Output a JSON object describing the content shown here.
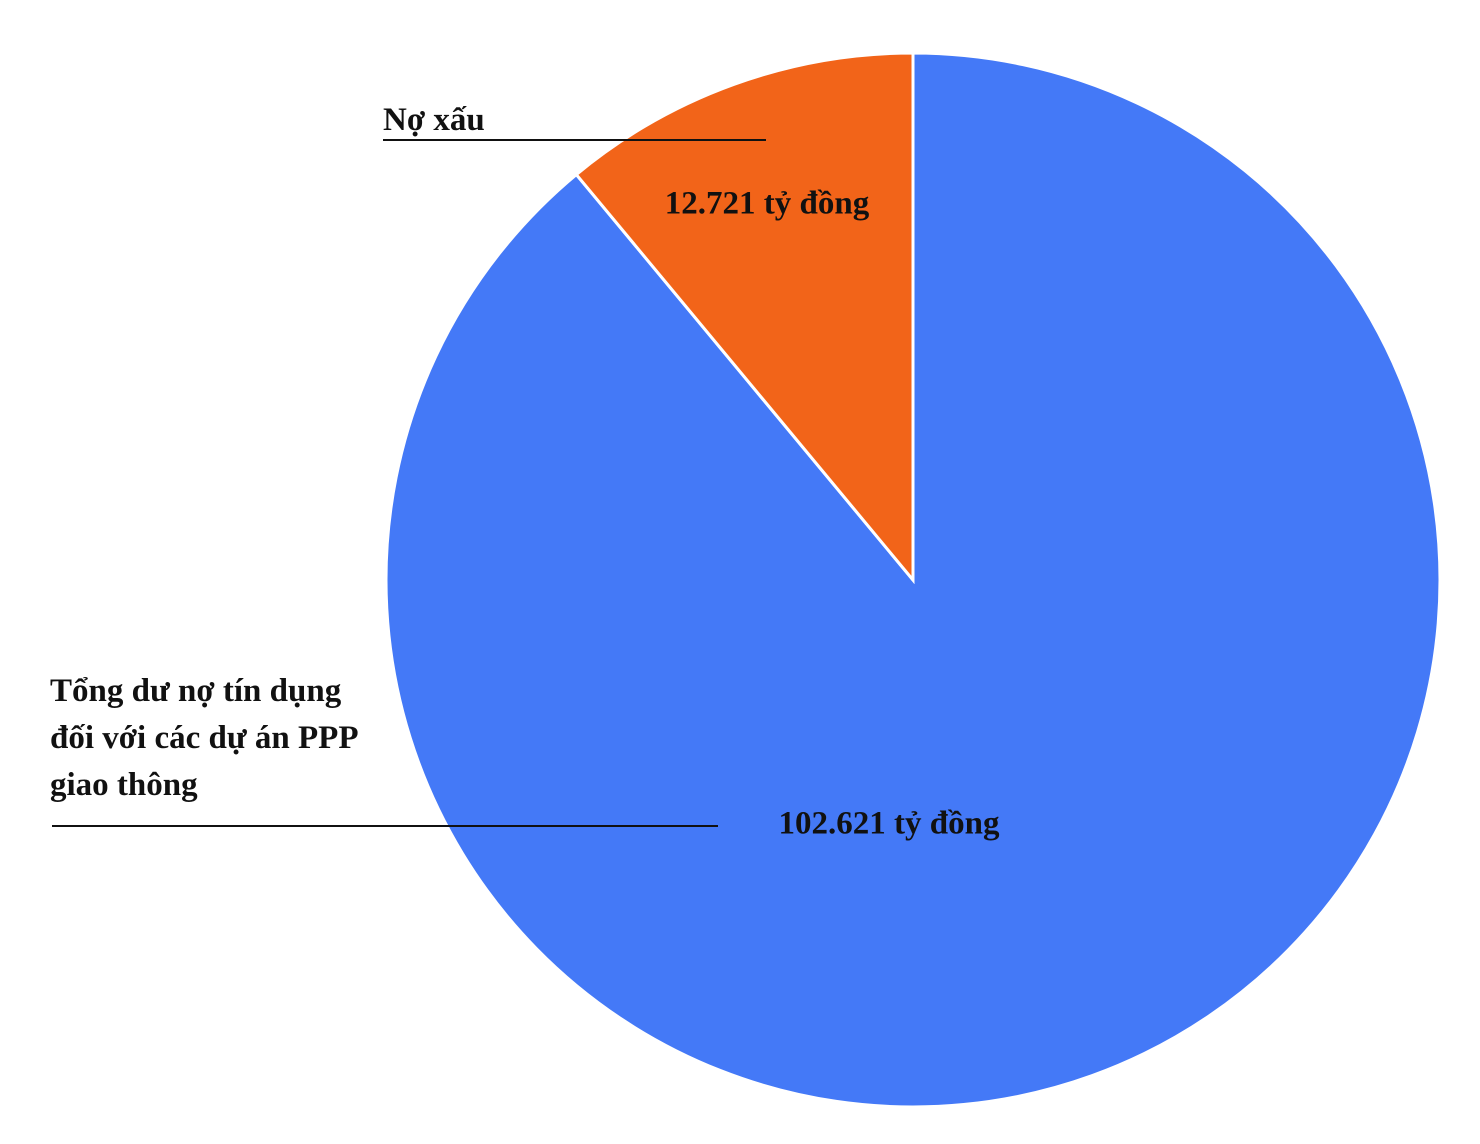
{
  "chart_data": {
    "type": "pie",
    "categories": [
      "Tổng dư nợ tín dụng đối với các dự án PPP giao thông",
      "Nợ xấu"
    ],
    "values": [
      102621,
      12721
    ],
    "value_labels": [
      "102.621 tỷ đồng",
      "12.721 tỷ đồng"
    ],
    "colors": [
      "#4479f7",
      "#f26419"
    ]
  }
}
